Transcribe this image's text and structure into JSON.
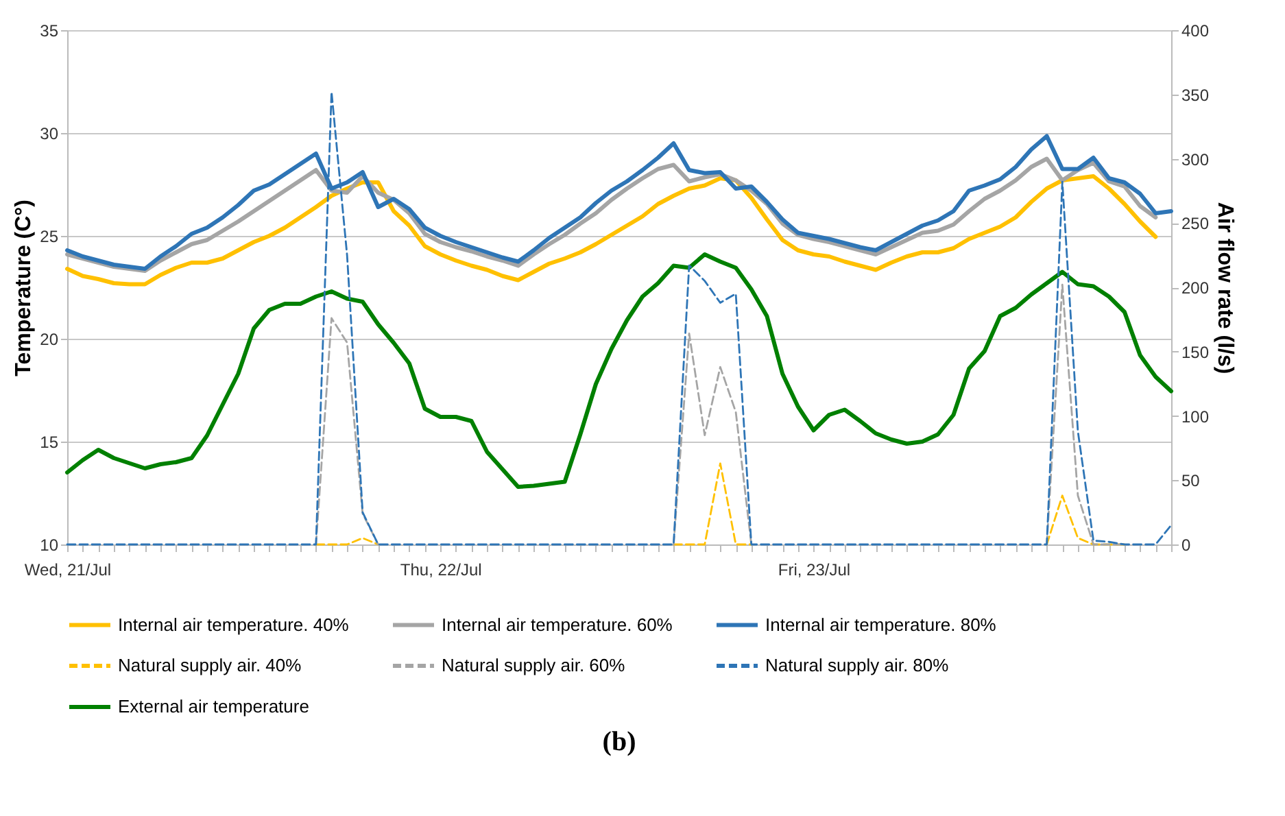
{
  "chart_data": {
    "type": "line",
    "title": "(b)",
    "ylabel": "Temperature (C°)",
    "y2label": "Air flow rate (l/s)",
    "categories": [
      "Wed, 21/Jul",
      null,
      null,
      null,
      null,
      null,
      null,
      null,
      null,
      null,
      null,
      null,
      null,
      null,
      null,
      null,
      null,
      null,
      null,
      null,
      null,
      null,
      null,
      null,
      "Thu, 22/Jul",
      null,
      null,
      null,
      null,
      null,
      null,
      null,
      null,
      null,
      null,
      null,
      null,
      null,
      null,
      null,
      null,
      null,
      null,
      null,
      null,
      null,
      null,
      null,
      "Fri, 23/Jul",
      null,
      null,
      null,
      null,
      null,
      null,
      null,
      null,
      null,
      null,
      null,
      null,
      null,
      null,
      null,
      null,
      null,
      null,
      null,
      null,
      null,
      null,
      null
    ],
    "ylim": [
      10,
      35
    ],
    "yticks": [
      10,
      15,
      20,
      25,
      30,
      35
    ],
    "y2lim": [
      0,
      400
    ],
    "y2ticks": [
      0,
      50,
      100,
      150,
      200,
      250,
      300,
      350,
      400
    ],
    "grid": "y",
    "legend": "bottom",
    "series": [
      {
        "name": "Internal air temperature. 40%",
        "color": "#ffc000",
        "line_style": "solid",
        "values": [
          23.4,
          23.05,
          22.9,
          22.7,
          22.65,
          22.65,
          23.1,
          23.45,
          23.7,
          23.7,
          23.9,
          24.3,
          24.7,
          25.0,
          25.4,
          25.9,
          26.4,
          26.95,
          27.3,
          27.6,
          27.6,
          26.2,
          25.5,
          24.5,
          24.1,
          23.8,
          23.55,
          23.35,
          23.05,
          22.85,
          23.25,
          23.65,
          23.9,
          24.2,
          24.6,
          25.05,
          25.5,
          25.95,
          26.55,
          26.95,
          27.3,
          27.45,
          27.8,
          27.7,
          26.85,
          25.8,
          24.8,
          24.3,
          24.1,
          24.0,
          23.75,
          23.55,
          23.35,
          23.7,
          24.0,
          24.2,
          24.2,
          24.4,
          24.85,
          25.15,
          25.45,
          25.9,
          26.65,
          27.3,
          27.7,
          27.8,
          27.9,
          27.3,
          26.55,
          25.7,
          24.95,
          null
        ]
      },
      {
        "name": "Internal air temperature. 60%",
        "color": "#a5a5a5",
        "line_style": "solid",
        "values": [
          24.1,
          23.9,
          23.7,
          23.5,
          23.4,
          23.3,
          23.8,
          24.2,
          24.6,
          24.8,
          25.25,
          25.7,
          26.2,
          26.7,
          27.2,
          27.7,
          28.2,
          27.2,
          27.1,
          27.9,
          27.1,
          26.75,
          26.1,
          25.1,
          24.7,
          24.45,
          24.25,
          24.0,
          23.8,
          23.55,
          24.1,
          24.6,
          25.05,
          25.6,
          26.1,
          26.75,
          27.3,
          27.8,
          28.25,
          28.45,
          27.65,
          27.85,
          28.0,
          27.7,
          27.2,
          26.55,
          25.6,
          25.05,
          24.85,
          24.7,
          24.5,
          24.3,
          24.1,
          24.45,
          24.8,
          25.15,
          25.25,
          25.55,
          26.2,
          26.8,
          27.2,
          27.7,
          28.35,
          28.75,
          27.7,
          28.2,
          28.55,
          27.65,
          27.4,
          26.45,
          25.9,
          null
        ]
      },
      {
        "name": "Internal air temperature. 80%",
        "color": "#2e75b6",
        "line_style": "solid",
        "values": [
          24.3,
          24.0,
          23.8,
          23.6,
          23.5,
          23.4,
          24.0,
          24.5,
          25.1,
          25.4,
          25.9,
          26.5,
          27.2,
          27.5,
          28.0,
          28.5,
          29.0,
          27.3,
          27.6,
          28.1,
          26.4,
          26.8,
          26.3,
          25.4,
          25.0,
          24.7,
          24.45,
          24.2,
          23.95,
          23.75,
          24.3,
          24.9,
          25.4,
          25.9,
          26.6,
          27.2,
          27.65,
          28.2,
          28.8,
          29.5,
          28.2,
          28.05,
          28.1,
          27.3,
          27.4,
          26.65,
          25.8,
          25.15,
          25.0,
          24.85,
          24.65,
          24.45,
          24.3,
          24.7,
          25.1,
          25.5,
          25.75,
          26.2,
          27.2,
          27.45,
          27.75,
          28.35,
          29.2,
          29.85,
          28.25,
          28.25,
          28.8,
          27.8,
          27.6,
          27.05,
          26.1,
          26.2
        ]
      },
      {
        "name": "Natural supply air. 40%",
        "color": "#ffc000",
        "line_style": "dashed",
        "axis": "y2",
        "values": [
          null,
          null,
          null,
          null,
          null,
          null,
          null,
          null,
          null,
          null,
          null,
          null,
          null,
          null,
          null,
          null,
          0,
          0,
          0,
          5,
          0,
          null,
          null,
          null,
          null,
          null,
          null,
          null,
          null,
          null,
          null,
          null,
          null,
          null,
          null,
          null,
          null,
          null,
          null,
          0,
          0,
          0,
          63,
          0,
          0,
          null,
          null,
          null,
          null,
          null,
          null,
          null,
          null,
          null,
          null,
          null,
          null,
          null,
          null,
          null,
          null,
          null,
          null,
          0,
          38,
          5,
          0,
          0,
          0,
          null,
          null,
          null
        ]
      },
      {
        "name": "Natural supply air. 60%",
        "color": "#a5a5a5",
        "line_style": "dashed",
        "axis": "y2",
        "values": [
          null,
          null,
          null,
          null,
          null,
          null,
          null,
          null,
          null,
          null,
          null,
          null,
          null,
          null,
          null,
          null,
          0,
          176,
          157,
          24,
          0,
          null,
          null,
          null,
          null,
          null,
          null,
          null,
          null,
          null,
          null,
          null,
          null,
          null,
          null,
          null,
          null,
          null,
          null,
          0,
          164,
          85,
          138,
          103,
          0,
          null,
          null,
          null,
          null,
          null,
          null,
          null,
          null,
          null,
          null,
          null,
          null,
          null,
          null,
          null,
          null,
          null,
          null,
          0,
          202,
          38,
          0,
          0,
          0,
          null,
          null,
          null
        ]
      },
      {
        "name": "Natural supply air. 80%",
        "color": "#2e75b6",
        "line_style": "dashed",
        "axis": "y2",
        "values": [
          0,
          0,
          0,
          0,
          0,
          0,
          0,
          0,
          0,
          0,
          0,
          0,
          0,
          0,
          0,
          0,
          0,
          352,
          225,
          25,
          0,
          0,
          0,
          0,
          0,
          0,
          0,
          0,
          0,
          0,
          0,
          0,
          0,
          0,
          0,
          0,
          0,
          0,
          0,
          0,
          217,
          205,
          188,
          195,
          0,
          0,
          0,
          0,
          0,
          0,
          0,
          0,
          0,
          0,
          0,
          0,
          0,
          0,
          0,
          0,
          0,
          0,
          0,
          0,
          282,
          88,
          3,
          2,
          0,
          0,
          0,
          15
        ]
      },
      {
        "name": "External air temperature",
        "color": "#008000",
        "line_style": "solid",
        "values": [
          13.5,
          14.1,
          14.6,
          14.2,
          13.95,
          13.7,
          13.9,
          14.0,
          14.2,
          15.3,
          16.8,
          18.3,
          20.5,
          21.4,
          21.7,
          21.7,
          22.05,
          22.3,
          21.95,
          21.8,
          20.7,
          19.8,
          18.8,
          16.6,
          16.2,
          16.2,
          16.0,
          14.5,
          13.65,
          12.8,
          12.85,
          12.95,
          13.05,
          15.35,
          17.8,
          19.5,
          20.9,
          22.05,
          22.7,
          23.55,
          23.45,
          24.1,
          23.75,
          23.45,
          22.4,
          21.1,
          18.3,
          16.7,
          15.55,
          16.3,
          16.55,
          16.0,
          15.4,
          15.1,
          14.9,
          15.0,
          15.35,
          16.3,
          18.55,
          19.4,
          21.1,
          21.5,
          22.15,
          22.7,
          23.25,
          22.65,
          22.55,
          22.05,
          21.3,
          19.2,
          18.15,
          17.45
        ]
      }
    ]
  }
}
